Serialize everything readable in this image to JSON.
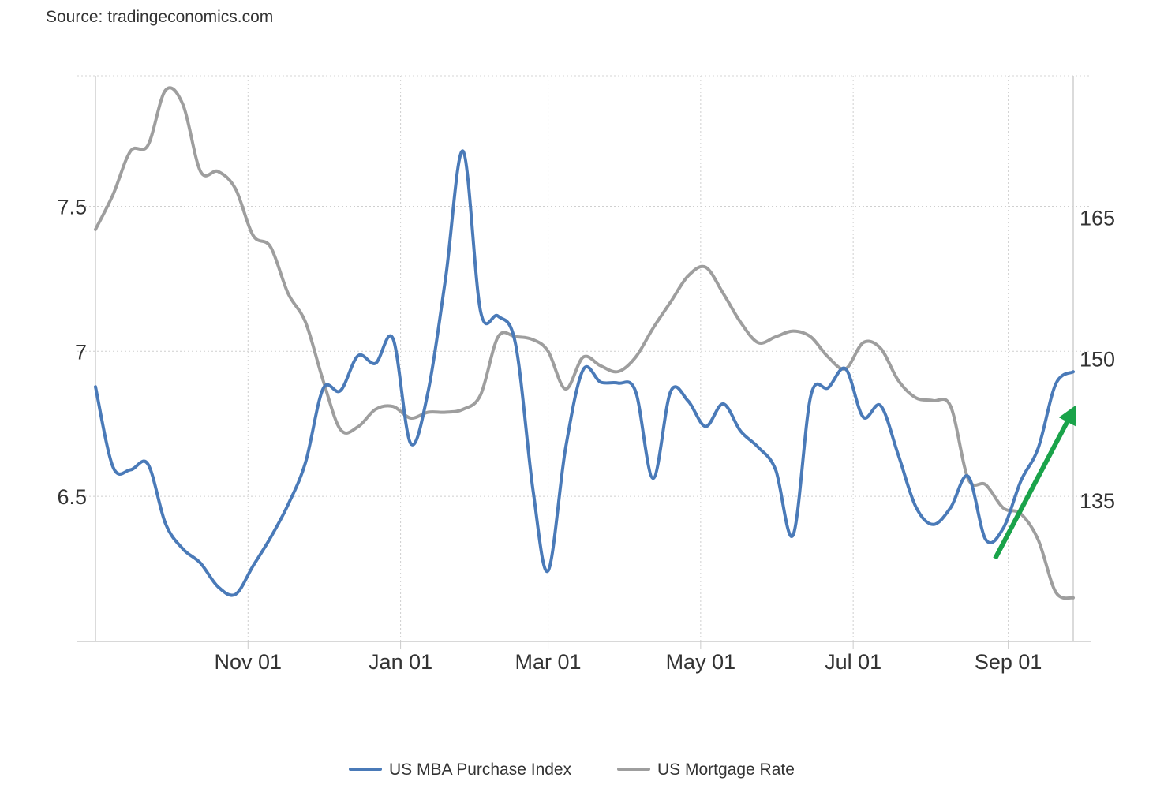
{
  "source": "Source: tradingeconomics.com",
  "chart_data": {
    "type": "line",
    "x_ticks": [
      "Nov 01",
      "Jan 01",
      "Mar 01",
      "May 01",
      "Jul 01",
      "Sep 01"
    ],
    "left_axis": {
      "ticks": [
        "7.5",
        "7",
        "6.5"
      ],
      "ylim": [
        6.0,
        7.95
      ]
    },
    "right_axis": {
      "ticks": [
        "165",
        "150",
        "135"
      ],
      "ylim": [
        120,
        180
      ]
    },
    "grid": true,
    "legend_position": "bottom",
    "annotation": {
      "type": "arrow",
      "color": "#1aa34a",
      "meaning": "upward trend in purchase index"
    },
    "series": [
      {
        "name": "US MBA Purchase Index",
        "axis": "right",
        "color": "#4a7ab8",
        "points": [
          [
            "2022-09-01",
            147
          ],
          [
            "2022-09-08",
            138.5
          ],
          [
            "2022-09-15",
            138.2
          ],
          [
            "2022-09-22",
            138.8
          ],
          [
            "2022-09-29",
            132.5
          ],
          [
            "2022-10-06",
            129.8
          ],
          [
            "2022-10-13",
            128.3
          ],
          [
            "2022-10-20",
            125.8
          ],
          [
            "2022-10-27",
            125.0
          ],
          [
            "2022-11-03",
            128.0
          ],
          [
            "2022-11-10",
            131.0
          ],
          [
            "2022-11-17",
            134.5
          ],
          [
            "2022-11-24",
            139.0
          ],
          [
            "2022-12-01",
            146.8
          ],
          [
            "2022-12-08",
            146.6
          ],
          [
            "2022-12-15",
            150.3
          ],
          [
            "2022-12-22",
            149.5
          ],
          [
            "2022-12-29",
            152.1
          ],
          [
            "2023-01-05",
            141.0
          ],
          [
            "2023-01-12",
            146.5
          ],
          [
            "2023-01-19",
            158.5
          ],
          [
            "2023-01-26",
            172.0
          ],
          [
            "2023-02-02",
            155.0
          ],
          [
            "2023-02-09",
            154.5
          ],
          [
            "2023-02-16",
            151.5
          ],
          [
            "2023-02-23",
            136.0
          ],
          [
            "2023-03-01",
            127.5
          ],
          [
            "2023-03-08",
            140.5
          ],
          [
            "2023-03-15",
            148.8
          ],
          [
            "2023-03-22",
            147.5
          ],
          [
            "2023-03-29",
            147.4
          ],
          [
            "2023-04-05",
            146.5
          ],
          [
            "2023-04-12",
            137.3
          ],
          [
            "2023-04-19",
            146.5
          ],
          [
            "2023-04-26",
            145.5
          ],
          [
            "2023-05-03",
            142.8
          ],
          [
            "2023-05-10",
            145.2
          ],
          [
            "2023-05-17",
            142.3
          ],
          [
            "2023-05-24",
            140.6
          ],
          [
            "2023-05-31",
            138.2
          ],
          [
            "2023-06-07",
            131.3
          ],
          [
            "2023-06-14",
            146.0
          ],
          [
            "2023-06-21",
            146.9
          ],
          [
            "2023-06-28",
            148.9
          ],
          [
            "2023-07-05",
            143.8
          ],
          [
            "2023-07-12",
            145.0
          ],
          [
            "2023-07-19",
            139.8
          ],
          [
            "2023-07-26",
            134.3
          ],
          [
            "2023-08-02",
            132.4
          ],
          [
            "2023-08-09",
            134.2
          ],
          [
            "2023-08-16",
            137.5
          ],
          [
            "2023-08-23",
            130.8
          ],
          [
            "2023-08-30",
            132.0
          ],
          [
            "2023-09-06",
            137.0
          ],
          [
            "2023-09-13",
            140.5
          ],
          [
            "2023-09-20",
            147.3
          ],
          [
            "2023-09-27",
            148.6
          ]
        ]
      },
      {
        "name": "US Mortgage Rate",
        "axis": "left",
        "color": "#9e9e9e",
        "points": [
          [
            "2022-09-01",
            7.42
          ],
          [
            "2022-09-08",
            7.54
          ],
          [
            "2022-09-15",
            7.69
          ],
          [
            "2022-09-22",
            7.71
          ],
          [
            "2022-09-29",
            7.9
          ],
          [
            "2022-10-06",
            7.85
          ],
          [
            "2022-10-13",
            7.62
          ],
          [
            "2022-10-20",
            7.62
          ],
          [
            "2022-10-27",
            7.56
          ],
          [
            "2022-11-03",
            7.4
          ],
          [
            "2022-11-10",
            7.36
          ],
          [
            "2022-11-17",
            7.2
          ],
          [
            "2022-11-24",
            7.1
          ],
          [
            "2022-12-01",
            6.9
          ],
          [
            "2022-12-08",
            6.73
          ],
          [
            "2022-12-15",
            6.74
          ],
          [
            "2022-12-22",
            6.8
          ],
          [
            "2022-12-29",
            6.81
          ],
          [
            "2023-01-05",
            6.77
          ],
          [
            "2023-01-12",
            6.79
          ],
          [
            "2023-01-19",
            6.79
          ],
          [
            "2023-01-26",
            6.8
          ],
          [
            "2023-02-02",
            6.85
          ],
          [
            "2023-02-09",
            7.05
          ],
          [
            "2023-02-16",
            7.05
          ],
          [
            "2023-02-23",
            7.04
          ],
          [
            "2023-03-01",
            7.0
          ],
          [
            "2023-03-08",
            6.87
          ],
          [
            "2023-03-15",
            6.98
          ],
          [
            "2023-03-22",
            6.95
          ],
          [
            "2023-03-29",
            6.93
          ],
          [
            "2023-04-05",
            6.98
          ],
          [
            "2023-04-12",
            7.08
          ],
          [
            "2023-04-19",
            7.17
          ],
          [
            "2023-04-26",
            7.26
          ],
          [
            "2023-05-03",
            7.29
          ],
          [
            "2023-05-10",
            7.2
          ],
          [
            "2023-05-17",
            7.1
          ],
          [
            "2023-05-24",
            7.03
          ],
          [
            "2023-05-31",
            7.05
          ],
          [
            "2023-06-07",
            7.07
          ],
          [
            "2023-06-14",
            7.05
          ],
          [
            "2023-06-21",
            6.98
          ],
          [
            "2023-06-28",
            6.94
          ],
          [
            "2023-07-05",
            7.03
          ],
          [
            "2023-07-12",
            7.01
          ],
          [
            "2023-07-19",
            6.9
          ],
          [
            "2023-07-26",
            6.84
          ],
          [
            "2023-08-02",
            6.83
          ],
          [
            "2023-08-09",
            6.81
          ],
          [
            "2023-08-16",
            6.56
          ],
          [
            "2023-08-23",
            6.54
          ],
          [
            "2023-08-30",
            6.46
          ],
          [
            "2023-09-06",
            6.44
          ],
          [
            "2023-09-13",
            6.35
          ],
          [
            "2023-09-20",
            6.17
          ],
          [
            "2023-09-27",
            6.15
          ]
        ]
      }
    ]
  }
}
